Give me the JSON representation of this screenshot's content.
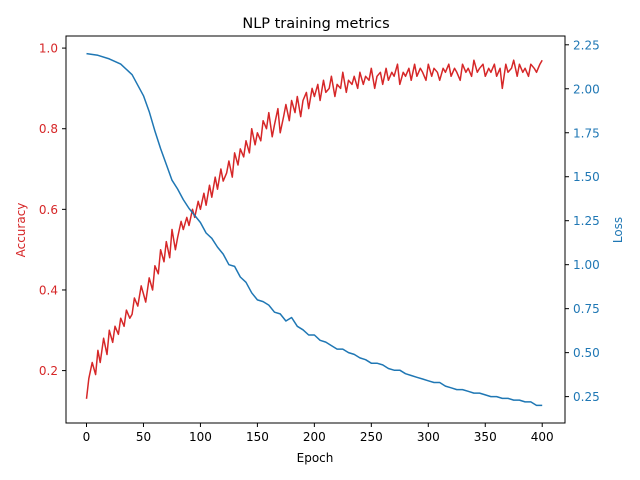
{
  "chart_data": {
    "type": "line",
    "title": "NLP training metrics",
    "xlabel": "Epoch",
    "xlim": [
      -18,
      420
    ],
    "xticks": [
      0,
      50,
      100,
      150,
      200,
      250,
      300,
      350,
      400
    ],
    "colors": {
      "left_axis": "#d62728",
      "right_axis": "#1f77b4",
      "frame": "#000000"
    },
    "y_left": {
      "label": "Accuracy",
      "ylim": [
        0.07,
        1.03
      ],
      "ticks": [
        "0.2",
        "0.4",
        "0.6",
        "0.8",
        "1.0"
      ]
    },
    "y_right": {
      "label": "Loss",
      "ylim": [
        0.1,
        2.3
      ],
      "ticks": [
        "0.25",
        "0.50",
        "0.75",
        "1.00",
        "1.25",
        "1.50",
        "1.75",
        "2.00",
        "2.25"
      ]
    },
    "series": [
      {
        "axis": "left",
        "x": [
          0,
          2,
          5,
          8,
          10,
          12,
          15,
          18,
          20,
          23,
          25,
          28,
          30,
          33,
          35,
          38,
          40,
          42,
          45,
          48,
          50,
          52,
          55,
          58,
          60,
          63,
          65,
          68,
          70,
          73,
          75,
          78,
          80,
          83,
          85,
          88,
          90,
          93,
          95,
          98,
          100,
          103,
          105,
          108,
          110,
          113,
          115,
          118,
          120,
          123,
          125,
          128,
          130,
          133,
          135,
          138,
          140,
          143,
          145,
          148,
          150,
          153,
          155,
          158,
          160,
          163,
          165,
          168,
          170,
          173,
          175,
          178,
          180,
          183,
          185,
          188,
          190,
          193,
          195,
          198,
          200,
          203,
          205,
          208,
          210,
          213,
          215,
          218,
          220,
          223,
          225,
          228,
          230,
          233,
          235,
          238,
          240,
          243,
          245,
          248,
          250,
          253,
          255,
          258,
          260,
          263,
          265,
          268,
          270,
          273,
          275,
          278,
          280,
          283,
          285,
          288,
          290,
          293,
          295,
          298,
          300,
          303,
          305,
          308,
          310,
          313,
          315,
          318,
          320,
          323,
          325,
          328,
          330,
          333,
          335,
          338,
          340,
          343,
          345,
          348,
          350,
          353,
          355,
          358,
          360,
          363,
          365,
          368,
          370,
          373,
          375,
          378,
          380,
          383,
          385,
          388,
          390,
          393,
          395,
          398,
          400
        ],
        "values": [
          0.13,
          0.18,
          0.22,
          0.19,
          0.25,
          0.22,
          0.28,
          0.24,
          0.3,
          0.27,
          0.31,
          0.29,
          0.33,
          0.31,
          0.35,
          0.33,
          0.34,
          0.38,
          0.36,
          0.41,
          0.39,
          0.37,
          0.43,
          0.4,
          0.46,
          0.44,
          0.5,
          0.47,
          0.52,
          0.48,
          0.55,
          0.5,
          0.53,
          0.57,
          0.55,
          0.58,
          0.56,
          0.6,
          0.58,
          0.62,
          0.6,
          0.64,
          0.61,
          0.66,
          0.63,
          0.68,
          0.65,
          0.7,
          0.67,
          0.69,
          0.72,
          0.68,
          0.74,
          0.71,
          0.75,
          0.73,
          0.77,
          0.74,
          0.8,
          0.76,
          0.79,
          0.77,
          0.82,
          0.8,
          0.84,
          0.78,
          0.81,
          0.85,
          0.79,
          0.83,
          0.86,
          0.82,
          0.87,
          0.84,
          0.88,
          0.83,
          0.87,
          0.89,
          0.85,
          0.9,
          0.88,
          0.91,
          0.87,
          0.92,
          0.89,
          0.9,
          0.93,
          0.88,
          0.91,
          0.9,
          0.94,
          0.89,
          0.92,
          0.91,
          0.93,
          0.9,
          0.94,
          0.91,
          0.93,
          0.92,
          0.95,
          0.9,
          0.93,
          0.94,
          0.91,
          0.95,
          0.92,
          0.94,
          0.93,
          0.96,
          0.91,
          0.94,
          0.93,
          0.95,
          0.92,
          0.96,
          0.93,
          0.95,
          0.94,
          0.92,
          0.96,
          0.93,
          0.95,
          0.94,
          0.92,
          0.95,
          0.94,
          0.96,
          0.93,
          0.95,
          0.94,
          0.92,
          0.96,
          0.94,
          0.95,
          0.93,
          0.97,
          0.94,
          0.95,
          0.96,
          0.93,
          0.95,
          0.94,
          0.96,
          0.93,
          0.95,
          0.9,
          0.96,
          0.94,
          0.95,
          0.97,
          0.93,
          0.96,
          0.94,
          0.95,
          0.93,
          0.96,
          0.95,
          0.94,
          0.96,
          0.97
        ]
      },
      {
        "axis": "right",
        "x": [
          0,
          10,
          20,
          30,
          40,
          50,
          55,
          60,
          65,
          70,
          75,
          80,
          85,
          90,
          95,
          100,
          105,
          110,
          115,
          120,
          125,
          130,
          135,
          140,
          145,
          150,
          155,
          160,
          165,
          170,
          175,
          180,
          185,
          190,
          195,
          200,
          205,
          210,
          215,
          220,
          225,
          230,
          235,
          240,
          245,
          250,
          255,
          260,
          265,
          270,
          275,
          280,
          285,
          290,
          295,
          300,
          305,
          310,
          315,
          320,
          325,
          330,
          335,
          340,
          345,
          350,
          355,
          360,
          365,
          370,
          375,
          380,
          385,
          390,
          395,
          400
        ],
        "values": [
          2.2,
          2.19,
          2.17,
          2.14,
          2.08,
          1.96,
          1.87,
          1.76,
          1.66,
          1.57,
          1.48,
          1.43,
          1.37,
          1.32,
          1.28,
          1.24,
          1.18,
          1.15,
          1.1,
          1.06,
          1.0,
          0.99,
          0.93,
          0.9,
          0.84,
          0.8,
          0.79,
          0.77,
          0.73,
          0.72,
          0.68,
          0.7,
          0.65,
          0.63,
          0.6,
          0.6,
          0.57,
          0.56,
          0.54,
          0.52,
          0.52,
          0.5,
          0.49,
          0.47,
          0.46,
          0.44,
          0.44,
          0.43,
          0.41,
          0.4,
          0.4,
          0.38,
          0.37,
          0.36,
          0.35,
          0.34,
          0.33,
          0.33,
          0.31,
          0.3,
          0.29,
          0.29,
          0.28,
          0.27,
          0.27,
          0.26,
          0.25,
          0.25,
          0.24,
          0.24,
          0.23,
          0.23,
          0.22,
          0.22,
          0.2,
          0.2
        ]
      }
    ]
  }
}
